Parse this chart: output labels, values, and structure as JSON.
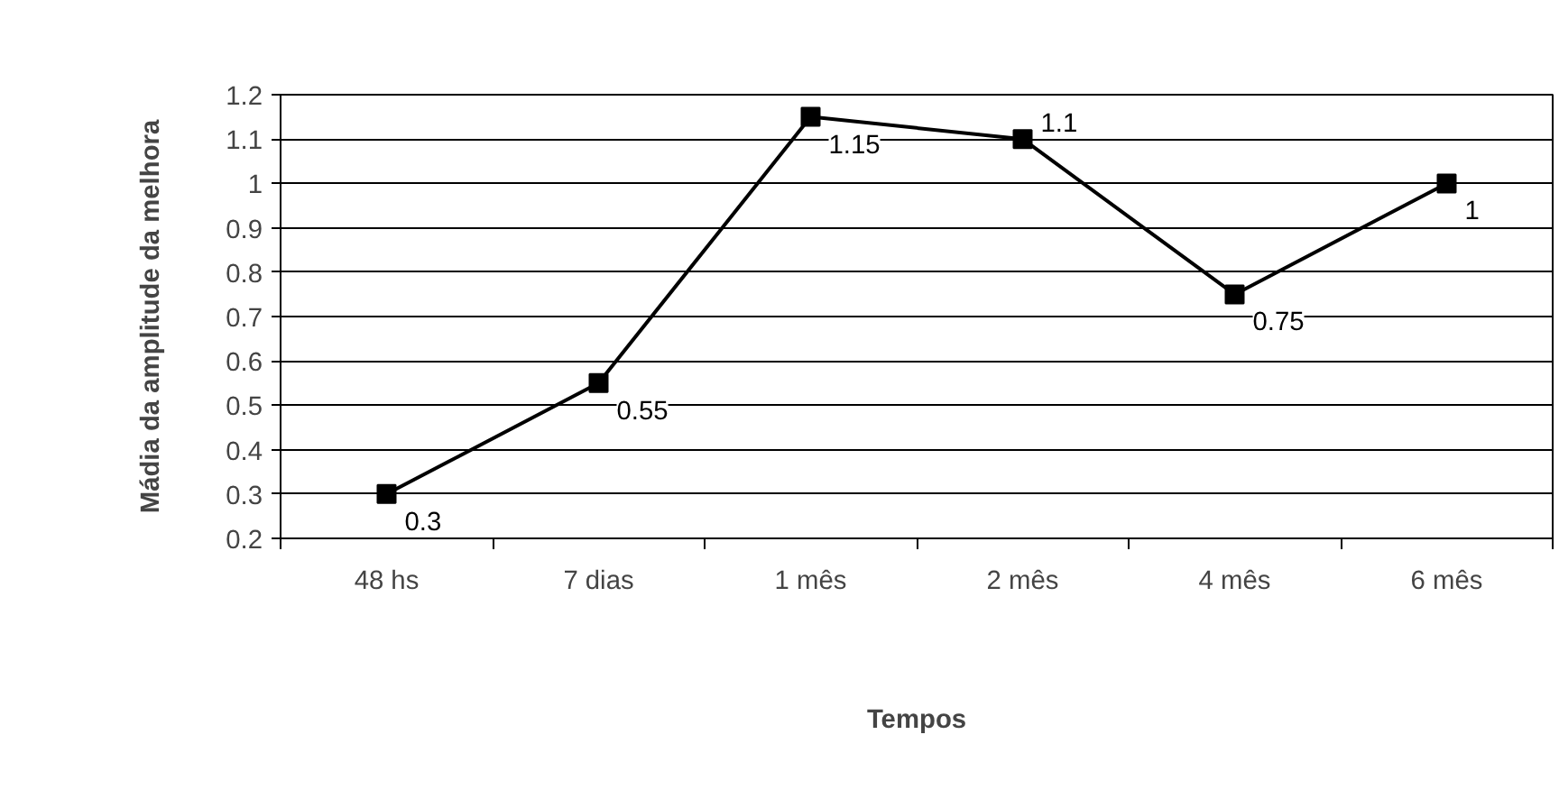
{
  "chart_data": {
    "type": "line",
    "xlabel": "Tempos",
    "ylabel": "Mádia da amplitude da melhora",
    "categories": [
      "48 hs",
      "7 dias",
      "1 mês",
      "2 mês",
      "4 mês",
      "6 mês"
    ],
    "series": [
      {
        "color": "#000000",
        "values": [
          0.3,
          0.55,
          1.15,
          1.1,
          0.75,
          1
        ]
      }
    ],
    "ylim": [
      0.2,
      1.2
    ],
    "yticks": [
      0.2,
      0.3,
      0.4,
      0.5,
      0.6,
      0.7,
      0.8,
      0.9,
      1,
      1.1,
      1.2
    ],
    "grid": "y",
    "marker": "square",
    "line_style": "solid",
    "data_labels": true
  }
}
